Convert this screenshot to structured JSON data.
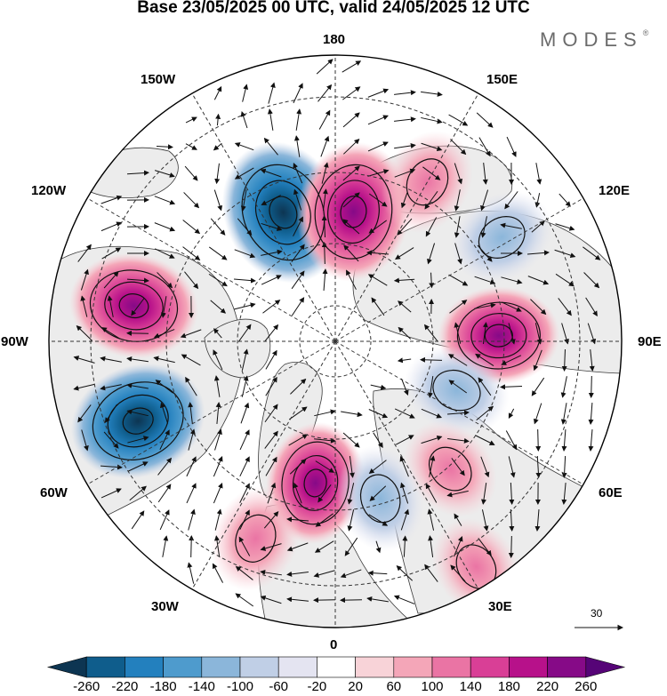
{
  "title": "Base 23/05/2025 00 UTC, valid 24/05/2025 12 UTC",
  "logo": {
    "text": "MODES",
    "mark": "®"
  },
  "map": {
    "projection": "north-polar-stereographic",
    "longitude_labels": {
      "top": "180",
      "bottom": "0",
      "left": "90W",
      "right": "90E",
      "upper_left_1": "150W",
      "upper_left_2": "120W",
      "upper_right_1": "150E",
      "upper_right_2": "120E",
      "lower_left_1": "60W",
      "lower_left_2": "30W",
      "lower_right_1": "60E",
      "lower_right_2": "30E"
    },
    "reference_vector_label": "30",
    "anomaly_centers": [
      {
        "name": "low-150W",
        "lon": -158,
        "lat": 56,
        "value": -260
      },
      {
        "name": "high-170W",
        "lon": 172,
        "lat": 58,
        "value": 240
      },
      {
        "name": "high-160E",
        "lon": 150,
        "lat": 45,
        "value": 110
      },
      {
        "name": "low-110E",
        "lon": 122,
        "lat": 42,
        "value": -110
      },
      {
        "name": "high-100W",
        "lon": -100,
        "lat": 40,
        "value": 200
      },
      {
        "name": "low-60W",
        "lon": -68,
        "lat": 38,
        "value": -230
      },
      {
        "name": "high-80E",
        "lon": 92,
        "lat": 50,
        "value": 170
      },
      {
        "name": "low-65E",
        "lon": 68,
        "lat": 58,
        "value": -110
      },
      {
        "name": "high-40E",
        "lon": 42,
        "lat": 48,
        "value": 100
      },
      {
        "name": "high-10W",
        "lon": -8,
        "lat": 55,
        "value": 170
      },
      {
        "name": "high-30W",
        "lon": -22,
        "lat": 38,
        "value": 110
      },
      {
        "name": "low-20E",
        "lon": 16,
        "lat": 50,
        "value": -110
      },
      {
        "name": "high-30E",
        "lon": 32,
        "lat": 25,
        "value": 90
      }
    ]
  },
  "colorbar": {
    "ticks": [
      "-260",
      "-220",
      "-180",
      "-140",
      "-100",
      "-60",
      "-20",
      "20",
      "60",
      "100",
      "140",
      "180",
      "220",
      "260"
    ],
    "colors": [
      "#0d3552",
      "#0f5d8c",
      "#2380be",
      "#4e9bcd",
      "#8bb6da",
      "#c0cfe6",
      "#e4e4f1",
      "#ffffff",
      "#f8d3d8",
      "#f4a6b8",
      "#ea74a4",
      "#d93f96",
      "#b7118a",
      "#860a87",
      "#560477"
    ]
  },
  "colors": {
    "land": "#ececec",
    "ocean": "#ffffff",
    "coast": "#222222",
    "grid": "#333333"
  }
}
